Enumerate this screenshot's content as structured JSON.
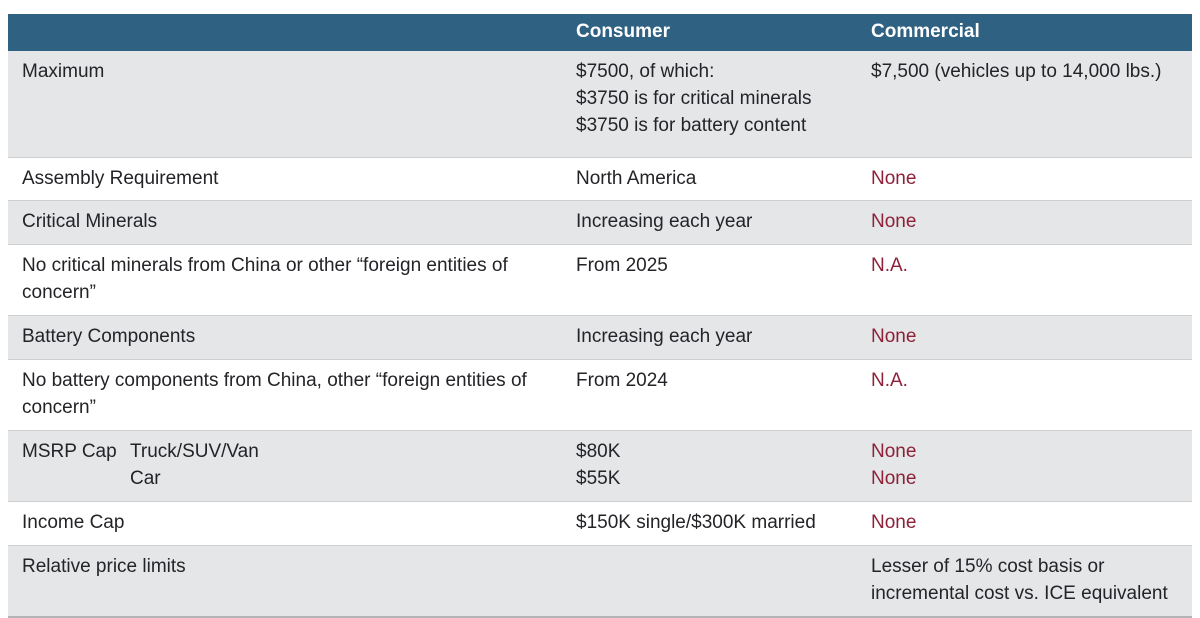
{
  "colors": {
    "header_bg": "#2F6183",
    "alt_row_bg": "#E4E6E8",
    "accent_red": "#8E2138",
    "text": "#242428"
  },
  "table": {
    "columns": {
      "label": "",
      "consumer": "Consumer",
      "commercial": "Commercial"
    },
    "rows": [
      {
        "label": "Maximum",
        "consumer_lines": [
          "$7500, of which:",
          "$3750 is for critical minerals",
          "$3750 is for battery content"
        ],
        "commercial": "$7,500 (vehicles up to 14,000 lbs.)"
      },
      {
        "label": "Assembly Requirement",
        "consumer": "North America",
        "commercial": "None"
      },
      {
        "label": "Critical Minerals",
        "consumer": "Increasing each year",
        "commercial": "None"
      },
      {
        "label": "No critical minerals from China or other “foreign entities of concern”",
        "consumer": "From 2025",
        "commercial": "N.A."
      },
      {
        "label": "Battery Components",
        "consumer": "Increasing each year",
        "commercial": "None"
      },
      {
        "label": "No battery components from China, other “foreign entities of concern”",
        "consumer": "From 2024",
        "commercial": "N.A."
      },
      {
        "label": "MSRP Cap",
        "sublabels": [
          "Truck/SUV/Van",
          "Car"
        ],
        "consumer_lines": [
          "$80K",
          "$55K"
        ],
        "commercial_lines": [
          "None",
          "None"
        ]
      },
      {
        "label": "Income Cap",
        "consumer": "$150K single/$300K married",
        "commercial": "None"
      },
      {
        "label": "Relative price limits",
        "consumer": "",
        "commercial": "Lesser of 15% cost basis or incremental cost vs. ICE equivalent"
      }
    ]
  }
}
